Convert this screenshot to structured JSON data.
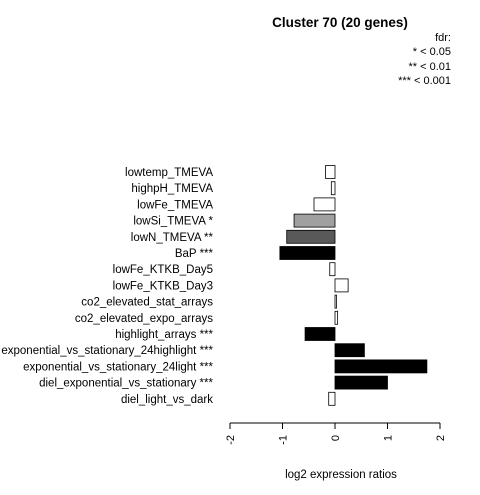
{
  "chart_data": {
    "type": "bar",
    "orientation": "horizontal",
    "title": "Cluster 70 (20 genes)",
    "xlabel": "log2 expression ratios",
    "ylabel": "",
    "xlim": [
      -2,
      2
    ],
    "xticks": [
      "-2",
      "-1",
      "0",
      "1",
      "2"
    ],
    "xtick_values": [
      -2,
      -1,
      0,
      1,
      2
    ],
    "grid": false,
    "legend": {
      "placement": "top-right",
      "title": "fdr:",
      "items": [
        "* < 0.05",
        "** < 0.01",
        "*** < 0.001"
      ]
    },
    "categories": [
      "lowtemp_TMEVA",
      "highpH_TMEVA",
      "lowFe_TMEVA",
      "lowSi_TMEVA *",
      "lowN_TMEVA **",
      "BaP ***",
      "lowFe_KTKB_Day5",
      "lowFe_KTKB_Day3",
      "co2_elevated_stat_arrays",
      "co2_elevated_expo_arrays",
      "highlight_arrays ***",
      "exponential_vs_stationary_24highlight ***",
      "exponential_vs_stationary_24light ***",
      "diel_exponential_vs_stationary ***",
      "diel_light_vs_dark"
    ],
    "values": [
      -0.18,
      -0.07,
      -0.4,
      -0.78,
      -0.92,
      -1.05,
      -0.1,
      0.25,
      0.02,
      0.05,
      -0.57,
      0.56,
      1.75,
      1.0,
      -0.12
    ],
    "bar_colors": [
      "#ffffff",
      "#ffffff",
      "#ffffff",
      "#a0a0a0",
      "#595959",
      "#000000",
      "#ffffff",
      "#ffffff",
      "#ffffff",
      "#ffffff",
      "#000000",
      "#000000",
      "#000000",
      "#000000",
      "#ffffff"
    ]
  }
}
